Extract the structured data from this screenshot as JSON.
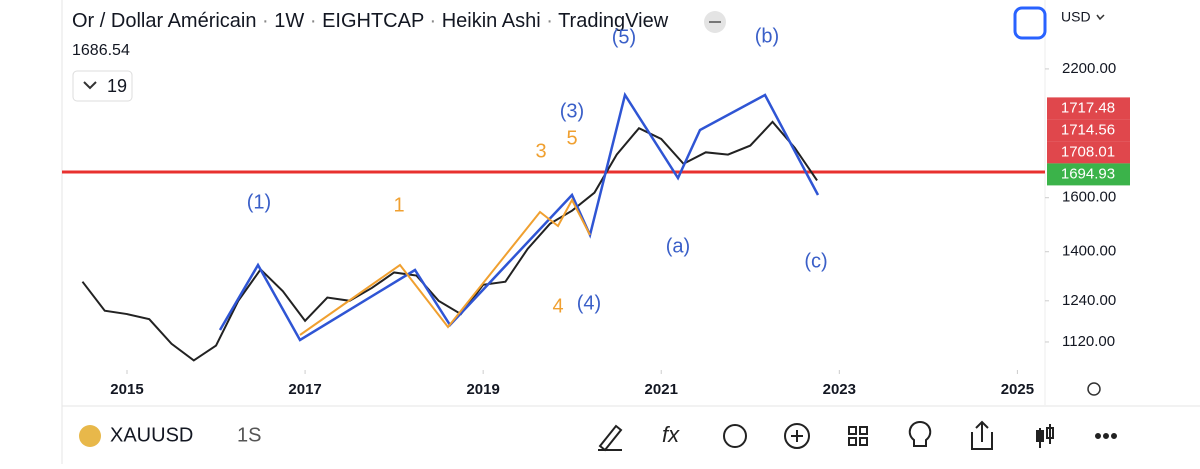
{
  "header": {
    "symbol_title": "Or / Dollar Américain",
    "interval": "1W",
    "exchange": "EIGHTCAP",
    "chart_style": "Heikin Ashi",
    "source": "TradingView",
    "last_price": "1686.54",
    "indicator_count": "19",
    "currency": "USD"
  },
  "chart_data": {
    "type": "line",
    "log_scale": true,
    "color": "#222222",
    "x": [
      2014.5,
      2014.75,
      2015.0,
      2015.25,
      2015.5,
      2015.75,
      2016.0,
      2016.25,
      2016.5,
      2016.75,
      2017.0,
      2017.25,
      2017.5,
      2017.75,
      2018.0,
      2018.25,
      2018.5,
      2018.75,
      2019.0,
      2019.25,
      2019.5,
      2019.75,
      2020.0,
      2020.25,
      2020.5,
      2020.75,
      2021.0,
      2021.25,
      2021.5,
      2021.75,
      2022.0,
      2022.25,
      2022.5,
      2022.75
    ],
    "values": [
      1300,
      1210,
      1200,
      1185,
      1115,
      1070,
      1110,
      1240,
      1340,
      1270,
      1180,
      1250,
      1240,
      1280,
      1330,
      1320,
      1240,
      1200,
      1290,
      1300,
      1410,
      1500,
      1550,
      1620,
      1780,
      1900,
      1850,
      1740,
      1790,
      1780,
      1820,
      1930,
      1810,
      1670
    ],
    "xlim": [
      2014.27,
      2025.31
    ],
    "xticks": [
      2015,
      2017,
      2019,
      2021,
      2023,
      2025
    ],
    "ylim": [
      1045,
      2363
    ],
    "yticks": [
      {
        "value": 1120,
        "label": "1120.00"
      },
      {
        "value": 1240,
        "label": "1240.00"
      },
      {
        "value": 1400,
        "label": "1400.00"
      },
      {
        "value": 1600,
        "label": "1600.00"
      },
      {
        "value": 2200,
        "label": "2200.00"
      }
    ],
    "price_labels": [
      {
        "value": 1717.48,
        "color": "#e0474c"
      },
      {
        "value": 1714.56,
        "color": "#e0474c"
      },
      {
        "value": 1708.01,
        "color": "#e0474c"
      },
      {
        "value": 1694.93,
        "color": "#3bb34a"
      }
    ],
    "horizontal_line": {
      "value": 1705,
      "color": "#e8312f"
    },
    "annotations": [
      {
        "text": "(1)",
        "color": "#3a5fc8"
      },
      {
        "text": "1",
        "color": "#f0a030"
      },
      {
        "text": "3",
        "color": "#f0a030"
      },
      {
        "text": "5",
        "color": "#f0a030"
      },
      {
        "text": "(3)",
        "color": "#3a5fc8"
      },
      {
        "text": "(5)",
        "color": "#3a5fc8"
      },
      {
        "text": "(b)",
        "color": "#3a5fc8"
      },
      {
        "text": "(a)",
        "color": "#3a5fc8"
      },
      {
        "text": "(c)",
        "color": "#3a5fc8"
      },
      {
        "text": "4",
        "color": "#f0a030"
      },
      {
        "text": "(4)",
        "color": "#3a5fc8"
      }
    ]
  },
  "footer": {
    "symbol": "XAUUSD",
    "timeframe": "1S"
  }
}
